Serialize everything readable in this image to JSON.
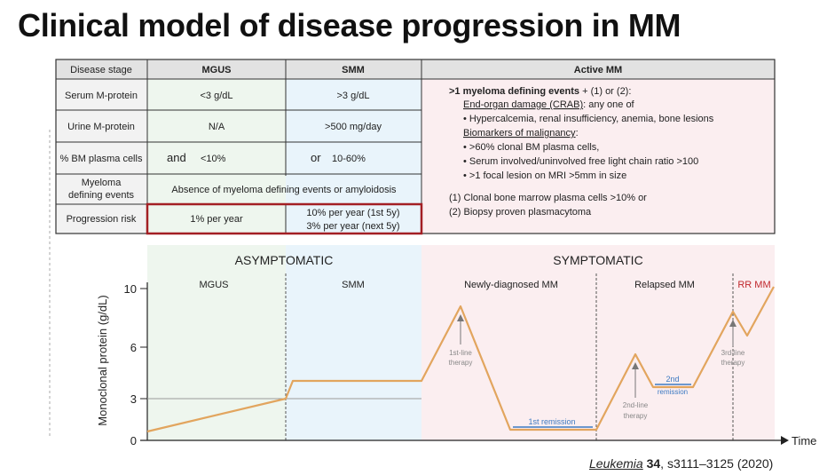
{
  "title": "Clinical model of disease progression in MM",
  "citation": {
    "journal": "Leukemia",
    "volume": "34",
    "pages": ", s3111–3125 (2020)"
  },
  "table": {
    "headers": {
      "stage": "Disease stage",
      "mgus": "MGUS",
      "smm": "SMM",
      "active": "Active MM"
    },
    "rows": {
      "serum": {
        "label": "Serum M-protein",
        "mgus": "<3 g/dL",
        "smm": ">3 g/dL"
      },
      "urine": {
        "label": "Urine M-protein",
        "mgus": "N/A",
        "smm": ">500 mg/day"
      },
      "bm": {
        "label": "% BM plasma cells",
        "mgus_prefix": "and",
        "mgus": "<10%",
        "smm_prefix": "or",
        "smm": "10-60%"
      },
      "events": {
        "label_line1": "Myeloma",
        "label_line2": "defining events",
        "value": "Absence of myeloma defining events or amyloidosis"
      },
      "risk": {
        "label": "Progression risk",
        "mgus": "1% per year",
        "smm_line1": "10% per year (1st 5y)",
        "smm_line2": "3% per year (next 5y)"
      }
    },
    "active": {
      "line1_bold": ">1 myeloma defining events",
      "line1_rest": " + (1) or (2):",
      "crab_heading": "End-organ damage (CRAB)",
      "crab_rest": ": any one of",
      "crab_item": "• Hypercalcemia, renal insufficiency, anemia, bone lesions",
      "bio_heading": "Biomarkers of malignancy",
      "bio_rest": ":",
      "bio_item1": "• >60% clonal BM plasma cells,",
      "bio_item2": "• Serum involved/uninvolved free light chain ratio >100",
      "bio_item3": "• >1 focal lesion on MRI >5mm in size",
      "crit1": "(1) Clonal bone marrow plasma cells >10% or",
      "crit2": "(2) Biopsy proven plasmacytoma"
    }
  },
  "plot": {
    "ylabel": "Monoclonal protein (g/dL)",
    "xlabel": "Time",
    "yticks": [
      "10",
      "6",
      "3",
      "0"
    ],
    "phase_left": "ASYMPTOMATIC",
    "phase_right": "SYMPTOMATIC",
    "sections": {
      "mgus": "MGUS",
      "smm": "SMM",
      "newly": "Newly-diagnosed MM",
      "relapsed": "Relapsed MM",
      "rrmm": "RR MM"
    },
    "annotations": {
      "first_line_1": "1st-line",
      "first_line_2": "therapy",
      "first_remission": "1st remission",
      "second_line_1": "2nd-line",
      "second_line_2": "therapy",
      "second_remission_1": "2nd",
      "second_remission_2": "remission",
      "third_line_1": "3rd-line",
      "third_line_2": "therapy"
    },
    "colors": {
      "curve": "#e2a55e",
      "remission": "#3d7ac2",
      "rrmm": "#c0282d",
      "risk_box": "#a31f24",
      "mgus_bg": "#eef6ee",
      "smm_bg": "#e9f4fb",
      "active_bg": "#fbeef0"
    }
  }
}
